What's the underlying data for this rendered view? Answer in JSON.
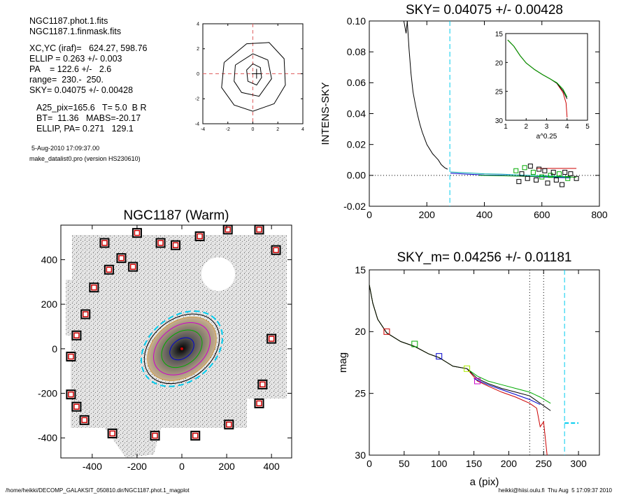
{
  "header": {
    "file_lines": [
      "NGC1187.phot.1.fits",
      "NGC1187.1.finmask.fits"
    ],
    "fit_lines": [
      "XC,YC (iraf)=   624.27, 598.76",
      "ELLIP = 0.263 +/- 0.003",
      "PA    = 122.6 +/-   2.6",
      "range=  230.-  250.",
      "SKY= 0.04075 +/- 0.00428"
    ],
    "param_lines": [
      "A25_pix=165.6   T= 5.0  B R",
      "BT=  11.36   MABS=-20.17",
      "ELLIP, PA= 0.271   129.1"
    ],
    "date_line": "5-Aug-2010 17:09:37.00",
    "program_line": "make_datalist0.pro (version HS230610)"
  },
  "footer": {
    "left": "/home/heikki/DECOMP_GALAKSIT_050810.dir/NGC1187.phot.1_magplot",
    "right": "heikki@hiisi.oulu.fi  Thu Aug  5 17:09:37 2010"
  },
  "colors": {
    "marker_red": "#cc0000",
    "ellipse_cyan": "#00ccee",
    "fit_green": "#00aa00",
    "fit_blue": "#0000cc",
    "fit_magenta": "#cc00cc"
  },
  "chart_data": [
    {
      "id": "contour",
      "type": "contour",
      "title": "",
      "xlim": [
        -4,
        4
      ],
      "ylim": [
        -4,
        4
      ],
      "xticks": [
        -4,
        -2,
        0,
        2,
        4
      ],
      "yticks": [
        -4,
        -2,
        0,
        2,
        4
      ],
      "crosshair": [
        0.3,
        0
      ],
      "contours": [
        [
          [
            -0.5,
            0.3
          ],
          [
            0,
            0.8
          ],
          [
            0.6,
            0.5
          ],
          [
            0.7,
            -0.3
          ],
          [
            0.3,
            -0.9
          ],
          [
            -0.4,
            -0.6
          ]
        ],
        [
          [
            -1.4,
            0.7
          ],
          [
            0,
            1.6
          ],
          [
            1.2,
            1.1
          ],
          [
            1.5,
            -0.4
          ],
          [
            0.5,
            -1.8
          ],
          [
            -0.9,
            -1.5
          ],
          [
            -1.5,
            -0.6
          ]
        ],
        [
          [
            -2.3,
            0.9
          ],
          [
            -0.5,
            2.4
          ],
          [
            1.3,
            2.5
          ],
          [
            2.5,
            1.2
          ],
          [
            2.6,
            -0.9
          ],
          [
            1.7,
            -2.4
          ],
          [
            0,
            -3
          ],
          [
            -1.5,
            -2.5
          ],
          [
            -2.5,
            -1.1
          ]
        ]
      ]
    },
    {
      "id": "sky",
      "type": "line",
      "title": "SKY= 0.04075 +/- 0.00428",
      "xlabel": "",
      "ylabel": "INTENS-SKY",
      "xlim": [
        0,
        800
      ],
      "ylim": [
        -0.02,
        0.1
      ],
      "xticks": [
        0,
        200,
        400,
        600,
        800
      ],
      "yticks": [
        -0.02,
        0.0,
        0.02,
        0.04,
        0.06,
        0.08,
        0.1
      ],
      "ytick_labels": [
        "-0.02",
        "0.00",
        "0.02",
        "0.04",
        "0.06",
        "0.08",
        "0.10"
      ],
      "sky_limit_x": 280,
      "profile": [
        [
          120,
          0.1
        ],
        [
          128,
          0.092
        ],
        [
          132,
          0.1
        ],
        [
          138,
          0.082
        ],
        [
          145,
          0.066
        ],
        [
          152,
          0.054
        ],
        [
          160,
          0.046
        ],
        [
          168,
          0.039
        ],
        [
          176,
          0.033
        ],
        [
          184,
          0.028
        ],
        [
          192,
          0.024
        ],
        [
          200,
          0.02
        ],
        [
          210,
          0.017
        ],
        [
          220,
          0.014
        ],
        [
          230,
          0.012
        ],
        [
          240,
          0.01
        ],
        [
          250,
          0.007
        ],
        [
          262,
          0.005
        ],
        [
          272,
          0.004
        ]
      ],
      "profile_outer": [
        [
          282,
          0.0022
        ],
        [
          340,
          0.0016
        ],
        [
          400,
          0.001
        ],
        [
          460,
          0.0008
        ],
        [
          520,
          0.0003
        ],
        [
          580,
          -0.0001
        ],
        [
          640,
          -0.0005
        ],
        [
          700,
          -0.0008
        ]
      ],
      "squares": [
        [
          510,
          0.003
        ],
        [
          520,
          -0.004
        ],
        [
          530,
          0.001
        ],
        [
          540,
          0.005
        ],
        [
          550,
          -0.002
        ],
        [
          560,
          0.006
        ],
        [
          570,
          0.002
        ],
        [
          580,
          -0.003
        ],
        [
          590,
          0.004
        ],
        [
          600,
          -0.001
        ],
        [
          610,
          0.003
        ],
        [
          620,
          -0.005
        ],
        [
          630,
          0.0
        ],
        [
          640,
          0.002
        ],
        [
          650,
          -0.003
        ],
        [
          660,
          0.001
        ],
        [
          670,
          -0.006
        ],
        [
          680,
          0.002
        ],
        [
          690,
          -0.002
        ],
        [
          700,
          0.001
        ],
        [
          720,
          -0.002
        ]
      ],
      "inset": {
        "xlabel": "a^0.25",
        "xlim": [
          1,
          5
        ],
        "ylim": [
          15,
          30
        ],
        "xticks": [
          1,
          2,
          3,
          4,
          5
        ],
        "yticks": [
          15,
          20,
          25,
          30
        ],
        "green": [
          [
            1.1,
            16.1
          ],
          [
            1.4,
            17.2
          ],
          [
            1.7,
            18.8
          ],
          [
            2.0,
            20.1
          ],
          [
            2.4,
            21.2
          ],
          [
            2.8,
            22.1
          ],
          [
            3.2,
            22.9
          ],
          [
            3.5,
            23.5
          ],
          [
            3.8,
            24.6
          ],
          [
            4.0,
            26.0
          ]
        ],
        "black": [
          [
            1.1,
            16.1
          ],
          [
            1.4,
            17.2
          ],
          [
            1.7,
            18.8
          ],
          [
            2.0,
            20.1
          ],
          [
            2.4,
            21.2
          ],
          [
            2.8,
            22.1
          ],
          [
            3.2,
            22.9
          ],
          [
            3.5,
            23.6
          ],
          [
            3.8,
            24.9
          ],
          [
            4.0,
            26.3
          ]
        ],
        "red": [
          [
            1.1,
            16.1
          ],
          [
            1.4,
            17.2
          ],
          [
            1.7,
            18.8
          ],
          [
            2.0,
            20.1
          ],
          [
            2.4,
            21.2
          ],
          [
            2.8,
            22.1
          ],
          [
            3.2,
            22.9
          ],
          [
            3.5,
            23.6
          ],
          [
            3.8,
            25.2
          ],
          [
            3.95,
            27.0
          ],
          [
            4.0,
            29.5
          ]
        ]
      }
    },
    {
      "id": "image",
      "type": "image",
      "title": "NGC1187 (Warm)",
      "xlim": [
        -540,
        490
      ],
      "ylim": [
        -490,
        555
      ],
      "xticks": [
        -400,
        -200,
        0,
        200,
        400
      ],
      "yticks": [
        -400,
        -200,
        0,
        200,
        400
      ],
      "ellipses": [
        {
          "a": 200,
          "b": 145,
          "pa": 38,
          "color": "#00ccee"
        },
        {
          "a": 185,
          "b": 134,
          "pa": 38,
          "color": "#000000"
        },
        {
          "a": 170,
          "b": 122,
          "pa": 38,
          "color": "#cc9944"
        },
        {
          "a": 140,
          "b": 100,
          "pa": 38,
          "color": "#cc00cc"
        },
        {
          "a": 100,
          "b": 72,
          "pa": 38,
          "color": "#00aa00"
        },
        {
          "a": 60,
          "b": 42,
          "pa": 38,
          "color": "#0000cc"
        }
      ],
      "sky_boxes": [
        [
          -345,
          475
        ],
        [
          -200,
          520
        ],
        [
          -95,
          475
        ],
        [
          -28,
          465
        ],
        [
          80,
          505
        ],
        [
          205,
          535
        ],
        [
          345,
          535
        ],
        [
          420,
          443
        ],
        [
          -270,
          407
        ],
        [
          -218,
          368
        ],
        [
          -325,
          355
        ],
        [
          -392,
          275
        ],
        [
          -430,
          155
        ],
        [
          -470,
          60
        ],
        [
          -495,
          -35
        ],
        [
          -495,
          -205
        ],
        [
          -470,
          -260
        ],
        [
          -435,
          -320
        ],
        [
          -310,
          -380
        ],
        [
          -120,
          -390
        ],
        [
          60,
          -390
        ],
        [
          210,
          -340
        ],
        [
          345,
          -245
        ],
        [
          360,
          -160
        ],
        [
          400,
          45
        ]
      ]
    },
    {
      "id": "mag",
      "type": "line",
      "title": "SKY_m=  0.04256 +/- 0.01181",
      "xlabel": "a (pix)",
      "ylabel": "mag",
      "xlim": [
        0,
        330
      ],
      "ylim": [
        15,
        30
      ],
      "xticks": [
        0,
        50,
        100,
        150,
        200,
        250,
        300
      ],
      "yticks": [
        15,
        20,
        25,
        30
      ],
      "vlines": [
        230,
        250
      ],
      "sky_limit_x": 280,
      "sky_segment": [
        [
          280,
          27.4
        ],
        [
          300,
          27.4
        ]
      ],
      "series": [
        {
          "color": "#cc0000",
          "points": [
            [
              0,
              16.2
            ],
            [
              5,
              17.7
            ],
            [
              12,
              19.0
            ],
            [
              25,
              20.1
            ],
            [
              45,
              20.8
            ],
            [
              65,
              21.2
            ],
            [
              85,
              21.8
            ],
            [
              100,
              22.1
            ],
            [
              120,
              22.8
            ],
            [
              140,
              23.0
            ],
            [
              155,
              24.0
            ],
            [
              170,
              24.4
            ],
            [
              190,
              24.9
            ],
            [
              210,
              25.3
            ],
            [
              230,
              25.8
            ],
            [
              240,
              26.2
            ],
            [
              245,
              27.7
            ],
            [
              250,
              27.3
            ],
            [
              255,
              30.0
            ]
          ]
        },
        {
          "color": "#00aa00",
          "points": [
            [
              0,
              16.2
            ],
            [
              5,
              17.7
            ],
            [
              12,
              19.0
            ],
            [
              25,
              20.1
            ],
            [
              45,
              20.8
            ],
            [
              65,
              21.2
            ],
            [
              85,
              21.8
            ],
            [
              100,
              22.1
            ],
            [
              120,
              22.8
            ],
            [
              140,
              23.0
            ],
            [
              155,
              23.6
            ],
            [
              170,
              24.0
            ],
            [
              190,
              24.3
            ],
            [
              210,
              24.6
            ],
            [
              230,
              24.9
            ],
            [
              245,
              25.3
            ],
            [
              260,
              25.8
            ]
          ]
        },
        {
          "color": "#000000",
          "points": [
            [
              0,
              16.2
            ],
            [
              5,
              17.7
            ],
            [
              12,
              19.0
            ],
            [
              25,
              20.1
            ],
            [
              45,
              20.8
            ],
            [
              65,
              21.2
            ],
            [
              85,
              21.8
            ],
            [
              100,
              22.1
            ],
            [
              120,
              22.8
            ],
            [
              140,
              23.0
            ],
            [
              155,
              23.8
            ],
            [
              170,
              24.2
            ],
            [
              190,
              24.6
            ],
            [
              210,
              24.9
            ],
            [
              230,
              25.2
            ],
            [
              245,
              25.8
            ],
            [
              260,
              26.4
            ]
          ]
        },
        {
          "color": "#0000cc",
          "points": [
            [
              150,
              23.8
            ],
            [
              170,
              24.3
            ],
            [
              190,
              24.7
            ],
            [
              210,
              25.1
            ],
            [
              230,
              25.5
            ],
            [
              245,
              25.9
            ]
          ]
        }
      ],
      "squares": [
        {
          "x": 25,
          "y": 20.0,
          "color": "#cc0000"
        },
        {
          "x": 65,
          "y": 21.0,
          "color": "#00aa00"
        },
        {
          "x": 100,
          "y": 22.0,
          "color": "#0000cc"
        },
        {
          "x": 140,
          "y": 23.0,
          "color": "#aaee00"
        },
        {
          "x": 155,
          "y": 24.0,
          "color": "#cc00cc"
        }
      ]
    }
  ]
}
